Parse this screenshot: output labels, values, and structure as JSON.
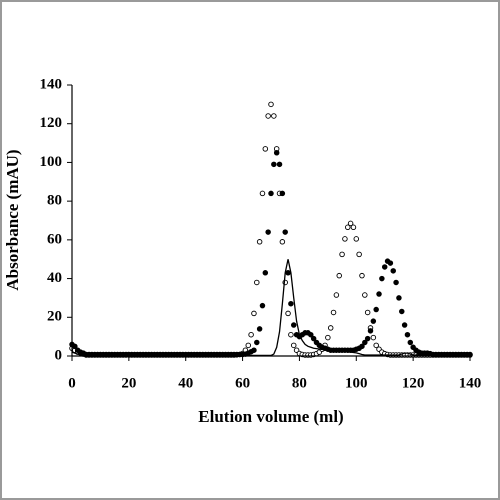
{
  "chart_data": {
    "type": "scatter",
    "x_label": "Elution volume (ml)",
    "y_label": "Absorbance (mAU)",
    "xlim": [
      0,
      140
    ],
    "xticks": [
      0,
      20,
      40,
      60,
      80,
      100,
      120,
      140
    ],
    "ylim": [
      0,
      140
    ],
    "yticks": [
      0,
      20,
      40,
      60,
      80,
      100,
      120,
      140
    ],
    "x": [
      0,
      1,
      2,
      3,
      4,
      5,
      6,
      7,
      8,
      9,
      10,
      11,
      12,
      13,
      14,
      15,
      16,
      17,
      18,
      19,
      20,
      21,
      22,
      23,
      24,
      25,
      26,
      27,
      28,
      29,
      30,
      31,
      32,
      33,
      34,
      35,
      36,
      37,
      38,
      39,
      40,
      41,
      42,
      43,
      44,
      45,
      46,
      47,
      48,
      49,
      50,
      51,
      52,
      53,
      54,
      55,
      56,
      57,
      58,
      59,
      60,
      61,
      62,
      63,
      64,
      65,
      66,
      67,
      68,
      69,
      70,
      71,
      72,
      73,
      74,
      75,
      76,
      77,
      78,
      79,
      80,
      81,
      82,
      83,
      84,
      85,
      86,
      87,
      88,
      89,
      90,
      91,
      92,
      93,
      94,
      95,
      96,
      97,
      98,
      99,
      100,
      101,
      102,
      103,
      104,
      105,
      106,
      107,
      108,
      109,
      110,
      111,
      112,
      113,
      114,
      115,
      116,
      117,
      118,
      119,
      120,
      121,
      122,
      123,
      124,
      125,
      126,
      127,
      128,
      129,
      130,
      131,
      132,
      133,
      134,
      135,
      136,
      137,
      138,
      139,
      140
    ],
    "series": [
      {
        "marker": "open-circle",
        "color": "#000000",
        "values": [
          4,
          3,
          2,
          1.5,
          1,
          0.5,
          0.5,
          0.5,
          0.5,
          0.5,
          0.5,
          0.5,
          0.5,
          0.5,
          0.5,
          0.5,
          0.5,
          0.5,
          0.5,
          0.5,
          0.5,
          0.5,
          0.5,
          0.5,
          0.5,
          0.5,
          0.5,
          0.5,
          0.5,
          0.5,
          0.5,
          0.5,
          0.5,
          0.5,
          0.5,
          0.5,
          0.5,
          0.5,
          0.5,
          0.5,
          0.5,
          0.5,
          0.5,
          0.5,
          0.5,
          0.5,
          0.5,
          0.5,
          0.5,
          0.5,
          0.5,
          0.5,
          0.5,
          0.5,
          0.5,
          0.5,
          0.5,
          0.5,
          0.6,
          0.8,
          1.3,
          3,
          5.5,
          11,
          22,
          38,
          59,
          84,
          107,
          124,
          130,
          124,
          107,
          84,
          59,
          38,
          22,
          11,
          5.5,
          3,
          1.3,
          0.8,
          0.5,
          0.5,
          0.5,
          0.8,
          1.2,
          2,
          3.5,
          5.5,
          9.5,
          14.5,
          22.5,
          31.5,
          41.5,
          52.5,
          60.5,
          66.5,
          68.5,
          66.5,
          60.5,
          52.5,
          41.5,
          31.5,
          22.5,
          14.5,
          9.5,
          5.5,
          3.5,
          2,
          1.2,
          0.8,
          0.5,
          0.5,
          0.5,
          0.5,
          0.5,
          0.5,
          0.5,
          0.5,
          0.5,
          0.5,
          0.5,
          0.5,
          0.5,
          0.5,
          0.5,
          0.5,
          0.5,
          0.5,
          0.5,
          0.5,
          0.5,
          0.5,
          0.5,
          0.5,
          0.5,
          0.5,
          0.5,
          0.5,
          0.5
        ]
      },
      {
        "marker": "filled-circle",
        "color": "#000000",
        "values": [
          6,
          5,
          3,
          2,
          1.5,
          0.8,
          0.8,
          0.8,
          0.8,
          0.8,
          0.8,
          0.8,
          0.8,
          0.8,
          0.8,
          0.8,
          0.8,
          0.8,
          0.8,
          0.8,
          0.8,
          0.8,
          0.8,
          0.8,
          0.8,
          0.8,
          0.8,
          0.8,
          0.8,
          0.8,
          0.8,
          0.8,
          0.8,
          0.8,
          0.8,
          0.8,
          0.8,
          0.8,
          0.8,
          0.8,
          0.8,
          0.8,
          0.8,
          0.8,
          0.8,
          0.8,
          0.8,
          0.8,
          0.8,
          0.8,
          0.8,
          0.8,
          0.8,
          0.8,
          0.8,
          0.8,
          0.8,
          0.8,
          0.8,
          0.8,
          0.8,
          1,
          1.5,
          2.2,
          3,
          7,
          14,
          26,
          43,
          64,
          84,
          99,
          105,
          99,
          84,
          64,
          43,
          27,
          16,
          11,
          10,
          11,
          12,
          12,
          11,
          9,
          7,
          5.5,
          4.5,
          4,
          3.5,
          3,
          3,
          3,
          3,
          3,
          3,
          3,
          3,
          3,
          3.5,
          4,
          5,
          7,
          9,
          13,
          18,
          24,
          32,
          40,
          46,
          49,
          48,
          44,
          38,
          30,
          23,
          16,
          11,
          7,
          4.5,
          3,
          2,
          1.5,
          1.5,
          1.5,
          1.2,
          0.8,
          0.8,
          0.8,
          0.8,
          0.8,
          0.8,
          0.8,
          0.8,
          0.8,
          0.8,
          0.8,
          0.8,
          0.8,
          0.8
        ]
      },
      {
        "marker": "line",
        "color": "#000000",
        "values": [
          2,
          1.5,
          1,
          0.5,
          0.3,
          0.3,
          0.3,
          0.3,
          0.3,
          0.3,
          0.3,
          0.3,
          0.3,
          0.3,
          0.3,
          0.3,
          0.3,
          0.3,
          0.3,
          0.3,
          0.3,
          0.3,
          0.3,
          0.3,
          0.3,
          0.3,
          0.3,
          0.3,
          0.3,
          0.3,
          0.3,
          0.3,
          0.3,
          0.3,
          0.3,
          0.3,
          0.3,
          0.3,
          0.3,
          0.3,
          0.3,
          0.3,
          0.3,
          0.3,
          0.3,
          0.3,
          0.3,
          0.3,
          0.3,
          0.3,
          0.3,
          0.3,
          0.3,
          0.3,
          0.3,
          0.3,
          0.3,
          0.3,
          0.3,
          0.3,
          0.3,
          0.3,
          0.3,
          0.3,
          0.3,
          0.3,
          0.3,
          0.3,
          0.3,
          0.3,
          0.3,
          1,
          4.5,
          12.5,
          27,
          43,
          50,
          43,
          30,
          18,
          11,
          8,
          6,
          5,
          4.5,
          4,
          3.8,
          3.6,
          3.4,
          3.2,
          3,
          2.9,
          2.8,
          2.7,
          2.6,
          2.5,
          2.3,
          2.1,
          2,
          1.8,
          1.6,
          1.2,
          0.8,
          0.5,
          0.5,
          0.5,
          0.5,
          0.5,
          0.5,
          0.5,
          0.5,
          0.5,
          0.5,
          0.5,
          0.5,
          0.5,
          1,
          1.5,
          1.5,
          1,
          0.5,
          0.5,
          0.5,
          0.5,
          0.5,
          0.5,
          0.5,
          0.5,
          0.5,
          0.5,
          0.5,
          0.5,
          0.5,
          0.5,
          0.5,
          0.5,
          0.5,
          0.5,
          0.5,
          0.5,
          0.5
        ]
      }
    ]
  }
}
